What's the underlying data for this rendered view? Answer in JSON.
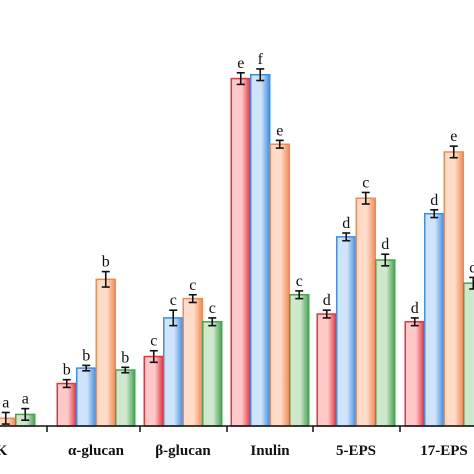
{
  "chart_data": {
    "type": "bar",
    "categories": [
      "CK",
      "α-glucan",
      "β-glucan",
      "Inulin",
      "5-EPS",
      "17-EPS"
    ],
    "tick_labels": [
      "CK",
      "α-glucan",
      "β-glucan",
      "Inulin",
      "5-EPS",
      "17-EPS"
    ],
    "ylim": [
      0,
      100
    ],
    "grid": false,
    "legend": "none",
    "series_colors": [
      {
        "light": "#ffc9c9",
        "dark": "#e8323c"
      },
      {
        "light": "#cfe3fb",
        "dark": "#3d8fe6"
      },
      {
        "light": "#ffdcc7",
        "dark": "#f38a55"
      },
      {
        "light": "#cfe8cd",
        "dark": "#47a455"
      }
    ],
    "series": [
      {
        "values": [
          3.0,
          11.0,
          18.0,
          90.0,
          29.0,
          27.0
        ],
        "errors": [
          1.0,
          1.0,
          1.5,
          1.5,
          1.0,
          1.0
        ],
        "letters": [
          "",
          "b",
          "c",
          "e",
          "d",
          "d"
        ]
      },
      {
        "values": [
          3.5,
          15.0,
          28.0,
          91.0,
          49.0,
          55.0
        ],
        "errors": [
          1.0,
          0.7,
          2.0,
          1.5,
          1.0,
          1.0
        ],
        "letters": [
          "",
          "b",
          "c",
          "f",
          "d",
          "d"
        ]
      },
      {
        "values": [
          2.0,
          38.0,
          33.0,
          73.0,
          59.0,
          71.0
        ],
        "errors": [
          1.5,
          2.0,
          1.0,
          1.0,
          1.5,
          1.5
        ],
        "letters": [
          "a",
          "b",
          "c",
          "e",
          "c",
          "e"
        ]
      },
      {
        "values": [
          3.0,
          14.5,
          27.0,
          34.0,
          43.0,
          37.0
        ],
        "errors": [
          1.5,
          0.7,
          1.0,
          1.0,
          1.5,
          1.5
        ],
        "letters": [
          "a",
          "b",
          "c",
          "c",
          "d",
          "d"
        ]
      }
    ]
  }
}
